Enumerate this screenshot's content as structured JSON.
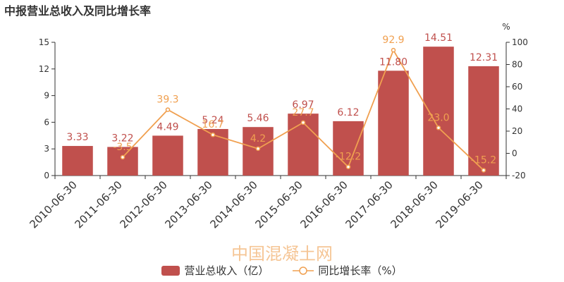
{
  "page": {
    "title": "中报营业总收入及同比增长率"
  },
  "watermark": "中国混凝土网",
  "colors": {
    "bar": "#c0504d",
    "line": "#f0a050",
    "axis": "#333333",
    "grid": "#e6e6e6",
    "watermark": "#f0a050"
  },
  "chart_data": {
    "type": "bar",
    "title": "中报营业总收入及同比增长率",
    "categories": [
      "2010-06-30",
      "2011-06-30",
      "2012-06-30",
      "2013-06-30",
      "2014-06-30",
      "2015-06-30",
      "2016-06-30",
      "2017-06-30",
      "2018-06-30",
      "2019-06-30"
    ],
    "series": [
      {
        "name": "营业总收入（亿）",
        "type": "bar",
        "axis": "left",
        "values": [
          3.33,
          3.22,
          4.49,
          5.24,
          5.46,
          6.97,
          6.12,
          11.8,
          14.51,
          12.31
        ],
        "labels": [
          "3.33",
          "3.22",
          "4.49",
          "5.24",
          "5.46",
          "6.97",
          "6.12",
          "11.80",
          "14.51",
          "12.31"
        ]
      },
      {
        "name": "同比增长率（%）",
        "type": "line",
        "axis": "right",
        "values": [
          null,
          -3.5,
          39.3,
          16.7,
          4.2,
          27.7,
          -12.2,
          92.9,
          23.0,
          -15.2
        ],
        "labels": [
          "",
          "-3.5",
          "39.3",
          "16.7",
          "4.2",
          "27.7",
          "-12.2",
          "92.9",
          "23.0",
          "-15.2"
        ]
      }
    ],
    "y_left": {
      "ylim": [
        0,
        15
      ],
      "ticks": [
        "0",
        "3",
        "6",
        "9",
        "12",
        "15"
      ]
    },
    "y_right": {
      "ylim": [
        -20,
        100
      ],
      "ticks": [
        "-20",
        "0",
        "20",
        "40",
        "60",
        "80",
        "100"
      ],
      "unit": "%"
    },
    "grid": false,
    "legend": "bottom"
  }
}
